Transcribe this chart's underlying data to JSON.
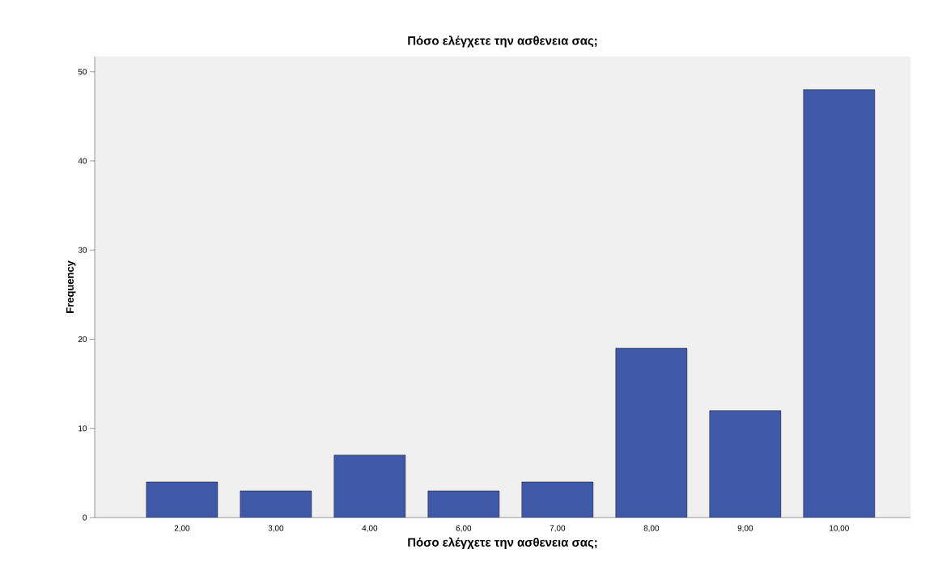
{
  "chart_data": {
    "type": "bar",
    "title": "Πόσο ελέγχετε την ασθενεια σας;",
    "xlabel": "Πόσο ελέγχετε την ασθενεια σας;",
    "ylabel": "Frequency",
    "categories": [
      "2,00",
      "3,00",
      "4,00",
      "6,00",
      "7,00",
      "8,00",
      "9,00",
      "10,00"
    ],
    "values": [
      4,
      3,
      7,
      3,
      4,
      19,
      12,
      48
    ],
    "color": "#3f58a8",
    "ylim": [
      0,
      51.7
    ],
    "yticks": [
      0,
      10,
      20,
      30,
      40,
      50
    ],
    "grid": false
  }
}
